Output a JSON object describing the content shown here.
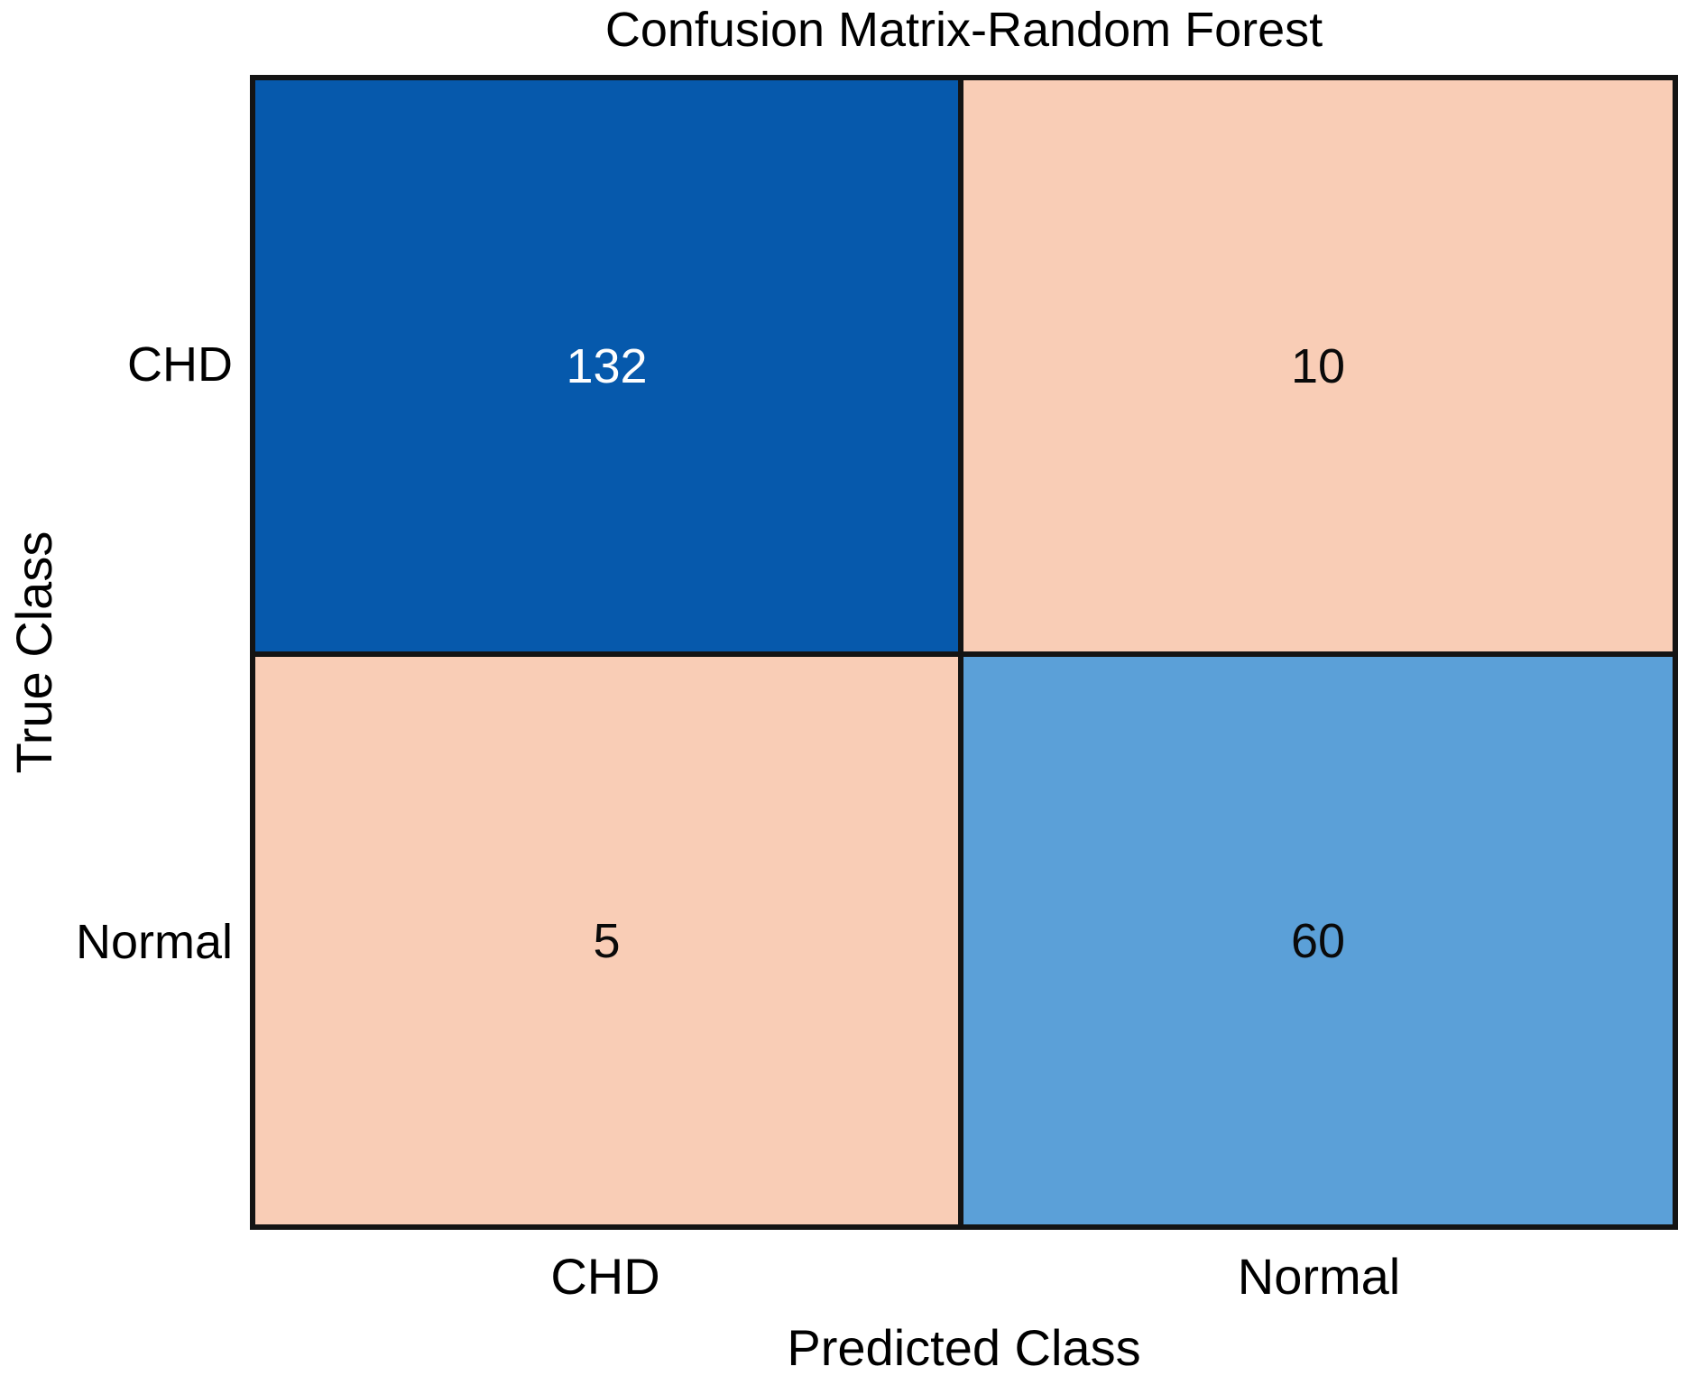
{
  "chart_data": {
    "type": "heatmap",
    "title": "Confusion Matrix-Random Forest",
    "xlabel": "Predicted Class",
    "ylabel": "True Class",
    "x_categories": [
      "CHD",
      "Normal"
    ],
    "y_categories": [
      "CHD",
      "Normal"
    ],
    "matrix": [
      [
        132,
        10
      ],
      [
        5,
        60
      ]
    ],
    "cells": [
      {
        "true_class": "CHD",
        "predicted_class": "CHD",
        "value": "132",
        "bg": "#0659ac",
        "fg": "#fefefe"
      },
      {
        "true_class": "CHD",
        "predicted_class": "Normal",
        "value": "10",
        "bg": "#f9cdb6",
        "fg": "#0a0a0a"
      },
      {
        "true_class": "Normal",
        "predicted_class": "CHD",
        "value": "5",
        "bg": "#f9cdb6",
        "fg": "#0a0a0a"
      },
      {
        "true_class": "Normal",
        "predicted_class": "Normal",
        "value": "60",
        "bg": "#5ba0d8",
        "fg": "#0a0a0a"
      }
    ],
    "layout": {
      "grid_line_color": "#141414",
      "background": "#ffffff",
      "legend": "none"
    }
  }
}
